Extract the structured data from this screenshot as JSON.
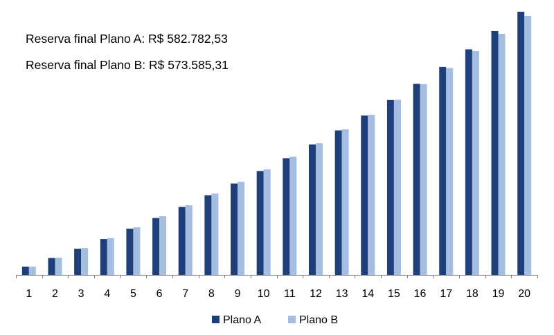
{
  "chart_data": {
    "type": "bar",
    "categories": [
      "1",
      "2",
      "3",
      "4",
      "5",
      "6",
      "7",
      "8",
      "9",
      "10",
      "11",
      "12",
      "13",
      "14",
      "15",
      "16",
      "17",
      "18",
      "19",
      "20"
    ],
    "series": [
      {
        "name": "Plano A",
        "color": "#1f3f7a",
        "values": [
          12.0,
          24.5,
          38.0,
          52.0,
          67.0,
          82.5,
          98.5,
          115.5,
          132.5,
          150.5,
          169.0,
          189.0,
          209.5,
          231.0,
          253.5,
          277.0,
          301.5,
          327.0,
          353.5,
          381.5
        ]
      },
      {
        "name": "Plano B",
        "color": "#a4bde1",
        "values": [
          12.0,
          25.0,
          39.0,
          53.5,
          69.0,
          85.0,
          101.0,
          118.0,
          135.0,
          153.0,
          171.5,
          191.0,
          211.0,
          232.0,
          254.0,
          276.5,
          300.0,
          324.5,
          349.5,
          375.5
        ]
      }
    ],
    "annotations": [
      "Reserva final Plano A: R$ 582.782,53",
      "Reserva final Plano B: R$ 573.585,31"
    ],
    "ylim": [
      0,
      381.5
    ],
    "grid": false,
    "legend_position": "bottom",
    "axis_color": "#7f7f7f"
  }
}
